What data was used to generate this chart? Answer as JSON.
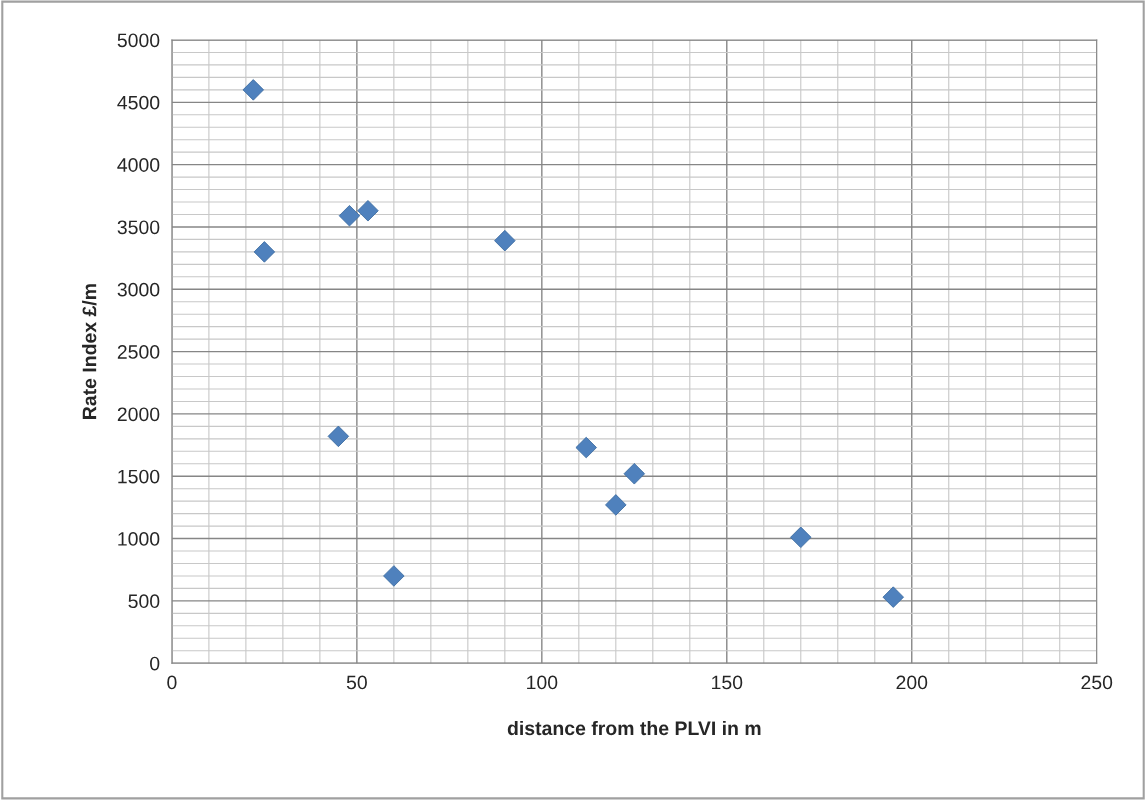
{
  "chart_data": {
    "type": "scatter",
    "xlabel": "distance from the PLVI in m",
    "ylabel": "Rate Index £/m",
    "x": [
      22,
      25,
      48,
      53,
      90,
      45,
      60,
      112,
      125,
      120,
      170,
      195
    ],
    "values": [
      4600,
      3300,
      3590,
      3630,
      3390,
      1820,
      700,
      1730,
      1520,
      1270,
      1010,
      530
    ],
    "color": "#4f81bd",
    "marker": "diamond",
    "xlim": [
      0,
      250
    ],
    "xticks": [
      0,
      50,
      100,
      150,
      200,
      250
    ],
    "ylim": [
      0,
      5000
    ],
    "yticks": [
      0,
      500,
      1000,
      1500,
      2000,
      2500,
      3000,
      3500,
      4000,
      4500,
      5000
    ],
    "grid": true,
    "legend": false
  }
}
